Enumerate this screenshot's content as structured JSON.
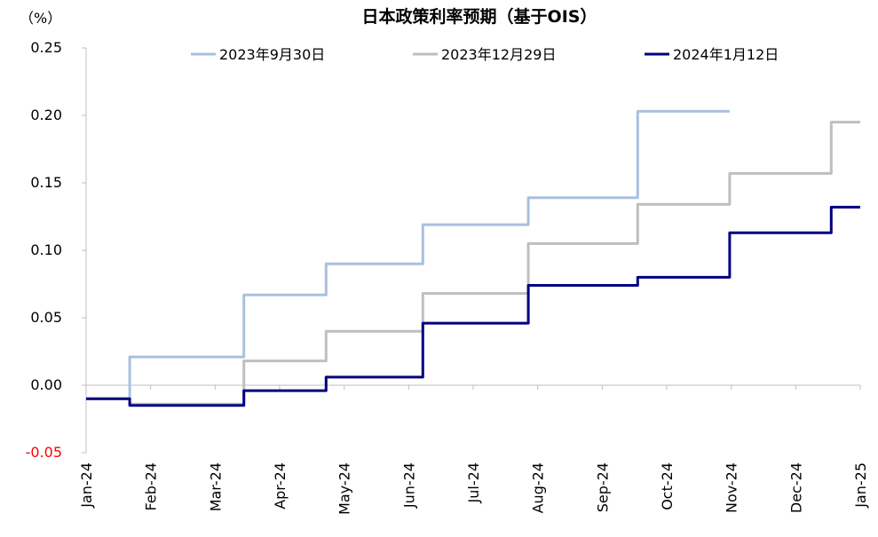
{
  "chart_data": {
    "type": "line",
    "title": "日本政策利率预期（基于OIS）",
    "unit": "（%）",
    "ylim": [
      -0.05,
      0.25
    ],
    "yticks": [
      "0.25",
      "0.20",
      "0.15",
      "0.10",
      "0.05",
      "0.00",
      "-0.05"
    ],
    "ytick_values": [
      0.25,
      0.2,
      0.15,
      0.1,
      0.05,
      0.0,
      -0.05
    ],
    "categories": [
      "Jan-24",
      "Feb-24",
      "Mar-24",
      "Apr-24",
      "May-24",
      "Jun-24",
      "Jul-24",
      "Aug-24",
      "Sep-24",
      "Oct-24",
      "Nov-24",
      "Dec-24",
      "Jan-25"
    ],
    "grid": false,
    "legend_position": "top",
    "series": [
      {
        "name": "2023年9月30日",
        "color": "#a9c0de",
        "width": 3,
        "points": [
          [
            0,
            -0.01
          ],
          [
            0.45,
            -0.01
          ],
          [
            0.45,
            0.021
          ],
          [
            1.63,
            0.021
          ],
          [
            1.63,
            0.067
          ],
          [
            2.48,
            0.067
          ],
          [
            2.48,
            0.09
          ],
          [
            3.48,
            0.09
          ],
          [
            3.48,
            0.119
          ],
          [
            4.57,
            0.119
          ],
          [
            4.57,
            0.139
          ],
          [
            5.7,
            0.139
          ],
          [
            5.7,
            0.203
          ],
          [
            6.65,
            0.203
          ]
        ]
      },
      {
        "name": "2023年12月29日",
        "color": "#bfbfbf",
        "width": 3,
        "points": [
          [
            0,
            -0.01
          ],
          [
            0.45,
            -0.01
          ],
          [
            0.45,
            -0.014
          ],
          [
            1.63,
            -0.014
          ],
          [
            1.63,
            0.018
          ],
          [
            2.48,
            0.018
          ],
          [
            2.48,
            0.04
          ],
          [
            3.48,
            0.04
          ],
          [
            3.48,
            0.068
          ],
          [
            4.57,
            0.068
          ],
          [
            4.57,
            0.105
          ],
          [
            5.7,
            0.105
          ],
          [
            5.7,
            0.134
          ],
          [
            6.65,
            0.134
          ],
          [
            6.65,
            0.157
          ],
          [
            7.7,
            0.157
          ],
          [
            7.7,
            0.195
          ],
          [
            8.0,
            0.195
          ]
        ]
      },
      {
        "name": "2024年1月12日",
        "color": "#000080",
        "width": 3,
        "points": [
          [
            0,
            -0.01
          ],
          [
            0.45,
            -0.01
          ],
          [
            0.45,
            -0.015
          ],
          [
            1.63,
            -0.015
          ],
          [
            1.63,
            -0.004
          ],
          [
            2.48,
            -0.004
          ],
          [
            2.48,
            0.006
          ],
          [
            3.48,
            0.006
          ],
          [
            3.48,
            0.046
          ],
          [
            4.57,
            0.046
          ],
          [
            4.57,
            0.074
          ],
          [
            5.7,
            0.074
          ],
          [
            5.7,
            0.08
          ],
          [
            6.65,
            0.08
          ],
          [
            6.65,
            0.113
          ],
          [
            7.7,
            0.113
          ],
          [
            7.7,
            0.132
          ],
          [
            8.0,
            0.132
          ]
        ]
      }
    ]
  }
}
